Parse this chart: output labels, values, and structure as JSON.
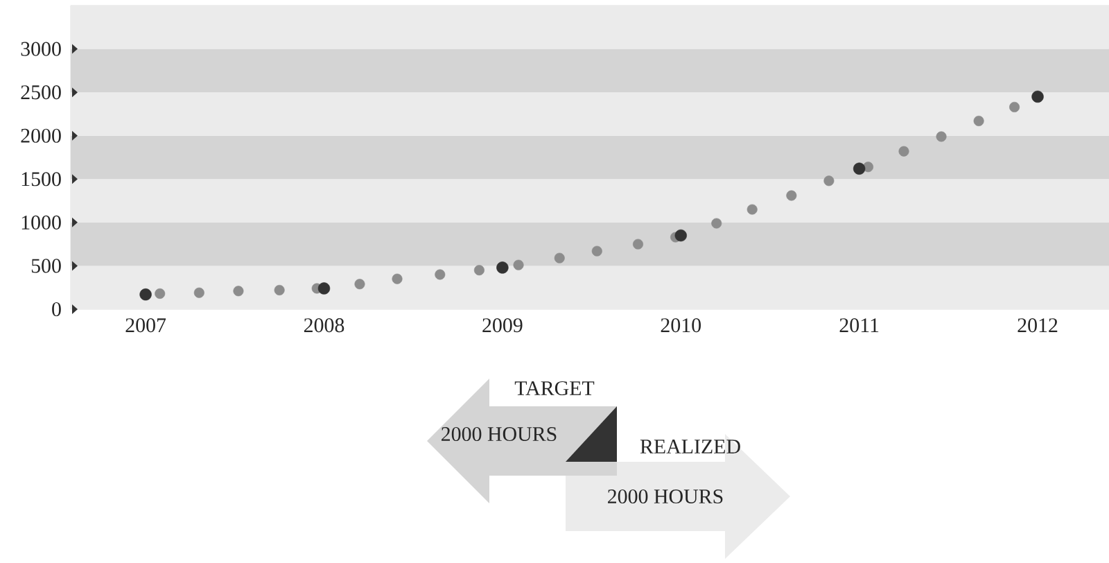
{
  "chart_data": {
    "type": "scatter",
    "xlim": [
      2006.58,
      2012.4
    ],
    "xticks": [
      2007,
      2008,
      2009,
      2010,
      2011,
      2012
    ],
    "ylim": [
      0,
      3500
    ],
    "yticks": [
      0,
      500,
      1000,
      1500,
      2000,
      2500,
      3000
    ],
    "grid": false,
    "bands": [
      {
        "axis": "y",
        "from": 0,
        "to": 500,
        "color": "#ebebeb"
      },
      {
        "axis": "y",
        "from": 500,
        "to": 1000,
        "color": "#d4d4d4"
      },
      {
        "axis": "y",
        "from": 1000,
        "to": 1500,
        "color": "#ebebeb"
      },
      {
        "axis": "y",
        "from": 1500,
        "to": 2000,
        "color": "#d4d4d4"
      },
      {
        "axis": "y",
        "from": 2000,
        "to": 2500,
        "color": "#ebebeb"
      },
      {
        "axis": "y",
        "from": 2500,
        "to": 3000,
        "color": "#d4d4d4"
      },
      {
        "axis": "y",
        "from": 3000,
        "to": 3500,
        "color": "#ebebeb"
      }
    ],
    "series": [
      {
        "color": "#8c8c8c",
        "x": [
          2007.08,
          2007.3,
          2007.52,
          2007.75,
          2007.96,
          2008.2,
          2008.41,
          2008.65,
          2008.87,
          2009.09,
          2009.32,
          2009.53,
          2009.76,
          2009.97,
          2010.2,
          2010.4,
          2010.62,
          2010.83,
          2011.05,
          2011.25,
          2011.46,
          2011.67,
          2011.87
        ],
        "values": [
          180,
          190,
          210,
          220,
          240,
          290,
          350,
          400,
          450,
          510,
          590,
          670,
          750,
          830,
          990,
          1150,
          1310,
          1480,
          1640,
          1820,
          1990,
          2170,
          2330
        ]
      },
      {
        "color": "#333333",
        "x": [
          2007,
          2008,
          2009,
          2010,
          2011,
          2012
        ],
        "values": [
          170,
          240,
          480,
          850,
          1620,
          2450
        ]
      }
    ],
    "annotations": [
      "TARGET",
      "2000 HOURS",
      "REALIZED",
      "2000 HOURS"
    ]
  }
}
